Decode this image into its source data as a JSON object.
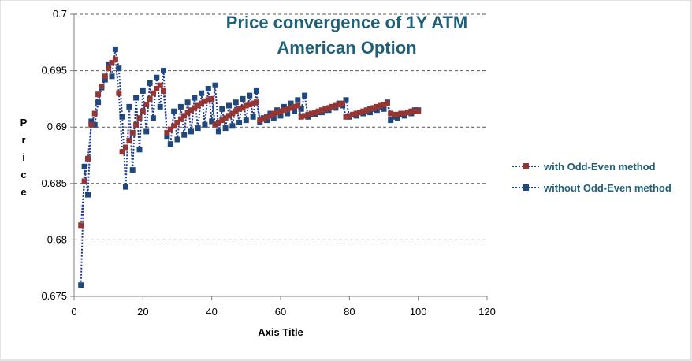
{
  "chart_data": {
    "type": "line",
    "title_lines": [
      "Price convergence of  1Y ATM",
      "American Option"
    ],
    "xlabel": "Axis Title",
    "ylabel": "Price",
    "xlim": [
      0,
      120
    ],
    "ylim": [
      0.675,
      0.7
    ],
    "x_ticks": [
      0,
      20,
      40,
      60,
      80,
      100,
      120
    ],
    "y_ticks": [
      0.675,
      0.68,
      0.685,
      0.69,
      0.695,
      0.7
    ],
    "x_tick_labels": [
      "0",
      "20",
      "40",
      "60",
      "80",
      "100",
      "120"
    ],
    "y_tick_labels": [
      "0.675",
      "0.68",
      "0.685",
      "0.69",
      "0.695",
      "0.7"
    ],
    "grid": "horizontal dashed",
    "legend_position": "right",
    "colors": {
      "odd_even": "#943634",
      "without": "#1f497d",
      "line": "#1f3a93",
      "title": "#1f5f7a"
    },
    "series": [
      {
        "name": "with Odd-Even method",
        "marker": "square",
        "x": [
          2,
          3,
          4,
          5,
          6,
          7,
          8,
          9,
          10,
          11,
          12,
          13,
          14,
          15,
          16,
          17,
          18,
          19,
          20,
          21,
          22,
          23,
          24,
          25,
          26,
          27,
          28,
          29,
          30,
          31,
          32,
          33,
          34,
          35,
          36,
          37,
          38,
          39,
          40,
          41,
          42,
          43,
          44,
          45,
          46,
          47,
          48,
          49,
          50,
          51,
          52,
          53,
          54,
          55,
          56,
          57,
          58,
          59,
          60,
          61,
          62,
          63,
          64,
          65,
          66,
          67,
          68,
          69,
          70,
          71,
          72,
          73,
          74,
          75,
          76,
          77,
          78,
          79,
          80,
          81,
          82,
          83,
          84,
          85,
          86,
          87,
          88,
          89,
          90,
          91,
          92,
          93,
          94,
          95,
          96,
          97,
          98,
          99,
          100
        ],
        "values": [
          0.6813,
          0.6852,
          0.6872,
          0.6902,
          0.6912,
          0.6929,
          0.6936,
          0.6945,
          0.6952,
          0.6957,
          0.696,
          0.693,
          0.6878,
          0.6882,
          0.6888,
          0.6895,
          0.6902,
          0.6908,
          0.6914,
          0.692,
          0.6925,
          0.693,
          0.6934,
          0.6937,
          0.6932,
          0.6895,
          0.6898,
          0.6901,
          0.6904,
          0.6907,
          0.691,
          0.6913,
          0.6915,
          0.6917,
          0.6919,
          0.6921,
          0.6923,
          0.6924,
          0.6925,
          0.6902,
          0.6904,
          0.6906,
          0.6908,
          0.691,
          0.6912,
          0.6914,
          0.6916,
          0.6917,
          0.6919,
          0.692,
          0.6921,
          0.6922,
          0.6906,
          0.6907,
          0.6909,
          0.691,
          0.6912,
          0.6913,
          0.6914,
          0.6915,
          0.6916,
          0.6917,
          0.6918,
          0.6919,
          0.6909,
          0.691,
          0.6911,
          0.6912,
          0.6913,
          0.6914,
          0.6915,
          0.6916,
          0.6917,
          0.6918,
          0.6919,
          0.692,
          0.6921,
          0.6909,
          0.691,
          0.6911,
          0.6912,
          0.6913,
          0.6914,
          0.6915,
          0.6916,
          0.6917,
          0.6918,
          0.6919,
          0.692,
          0.6921,
          0.6912,
          0.6911,
          0.6911,
          0.6912,
          0.6912,
          0.6913,
          0.6914,
          0.6914,
          0.6914
        ]
      },
      {
        "name": "without Odd-Even method",
        "marker": "square",
        "x": [
          2,
          3,
          4,
          5,
          6,
          7,
          8,
          9,
          10,
          11,
          12,
          13,
          14,
          15,
          16,
          17,
          18,
          19,
          20,
          21,
          22,
          23,
          24,
          25,
          26,
          27,
          28,
          29,
          30,
          31,
          32,
          33,
          34,
          35,
          36,
          37,
          38,
          39,
          40,
          41,
          42,
          43,
          44,
          45,
          46,
          47,
          48,
          49,
          50,
          51,
          52,
          53,
          54,
          55,
          56,
          57,
          58,
          59,
          60,
          61,
          62,
          63,
          64,
          65,
          66,
          67,
          68,
          69,
          70,
          71,
          72,
          73,
          74,
          75,
          76,
          77,
          78,
          79,
          80,
          81,
          82,
          83,
          84,
          85,
          86,
          87,
          88,
          89,
          90,
          91,
          92,
          93,
          94,
          95,
          96,
          97,
          98,
          99,
          100
        ],
        "values": [
          0.676,
          0.6865,
          0.684,
          0.6905,
          0.6902,
          0.6922,
          0.6935,
          0.6942,
          0.6955,
          0.6945,
          0.6969,
          0.6952,
          0.6909,
          0.6847,
          0.6918,
          0.6862,
          0.6926,
          0.688,
          0.6932,
          0.6896,
          0.6939,
          0.6908,
          0.6944,
          0.6918,
          0.695,
          0.6892,
          0.6885,
          0.6914,
          0.6889,
          0.6918,
          0.6893,
          0.6922,
          0.6896,
          0.6926,
          0.6899,
          0.693,
          0.6902,
          0.6934,
          0.6905,
          0.6937,
          0.6896,
          0.6916,
          0.6899,
          0.6919,
          0.6901,
          0.6922,
          0.6904,
          0.6925,
          0.6906,
          0.6928,
          0.6909,
          0.6932,
          0.6904,
          0.6908,
          0.6906,
          0.6912,
          0.6908,
          0.6915,
          0.691,
          0.6918,
          0.6912,
          0.6921,
          0.6914,
          0.6924,
          0.6916,
          0.6928,
          0.6909,
          0.6911,
          0.6911,
          0.6913,
          0.6913,
          0.6915,
          0.6915,
          0.6918,
          0.6917,
          0.6921,
          0.6919,
          0.6924,
          0.6909,
          0.6911,
          0.691,
          0.6913,
          0.6912,
          0.6914,
          0.6913,
          0.6916,
          0.6915,
          0.6918,
          0.6916,
          0.6922,
          0.6906,
          0.6909,
          0.6908,
          0.6911,
          0.691,
          0.6913,
          0.6912,
          0.6915,
          0.6915
        ]
      }
    ]
  }
}
